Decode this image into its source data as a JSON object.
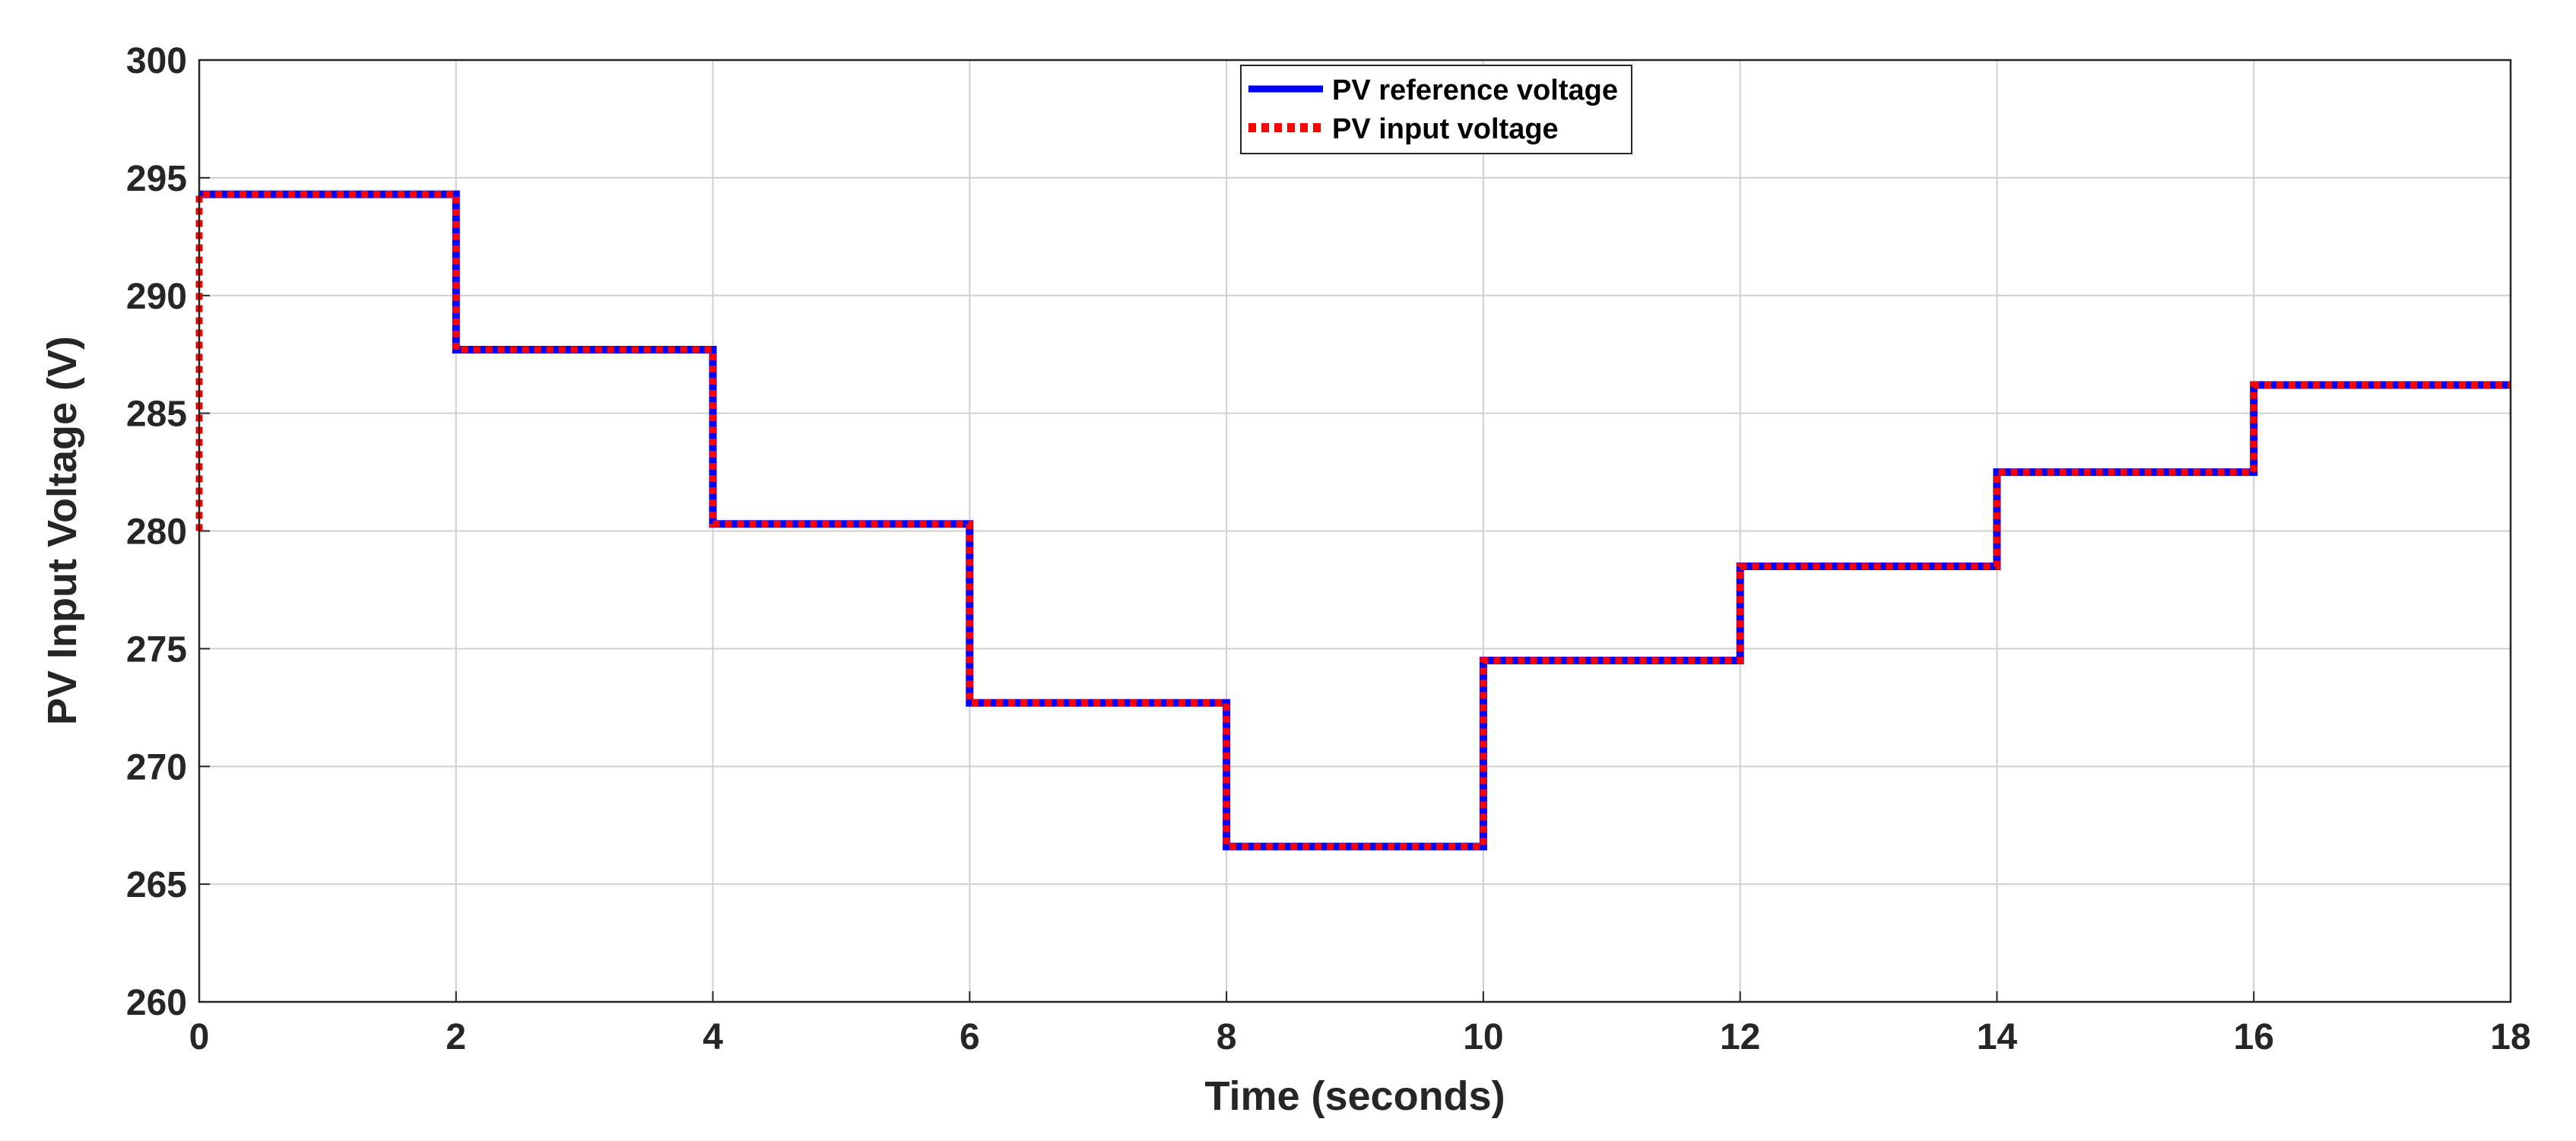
{
  "chart_data": {
    "type": "line",
    "title": "",
    "xlabel": "Time (seconds)",
    "ylabel": "PV Input Voltage (V)",
    "xlim": [
      0,
      18
    ],
    "ylim": [
      260,
      300
    ],
    "xticks": [
      "0",
      "2",
      "4",
      "6",
      "8",
      "10",
      "12",
      "14",
      "16",
      "18"
    ],
    "yticks": [
      "260",
      "265",
      "270",
      "275",
      "280",
      "285",
      "290",
      "295",
      "300"
    ],
    "grid": true,
    "legend_position": "top-center",
    "series": [
      {
        "name": "PV reference voltage",
        "color": "#0000ff",
        "style": "solid",
        "x": [
          0,
          0,
          2,
          2,
          4,
          4,
          6,
          6,
          8,
          8,
          10,
          10,
          12,
          12,
          14,
          14,
          16,
          16,
          18
        ],
        "y": [
          294.3,
          294.3,
          294.3,
          287.7,
          287.7,
          280.3,
          280.3,
          272.7,
          272.7,
          266.6,
          266.6,
          274.5,
          274.5,
          278.5,
          278.5,
          282.5,
          282.5,
          286.2,
          286.2
        ]
      },
      {
        "name": "PV input voltage",
        "color": "#ff0000",
        "style": "dotted",
        "x": [
          0,
          0,
          2,
          2,
          4,
          4,
          6,
          6,
          8,
          8,
          10,
          10,
          12,
          12,
          14,
          14,
          16,
          16,
          18
        ],
        "y": [
          280.0,
          294.3,
          294.3,
          287.7,
          287.7,
          280.3,
          280.3,
          272.7,
          272.7,
          266.6,
          266.6,
          274.5,
          274.5,
          278.5,
          278.5,
          282.5,
          282.5,
          286.2,
          286.2
        ]
      }
    ]
  }
}
